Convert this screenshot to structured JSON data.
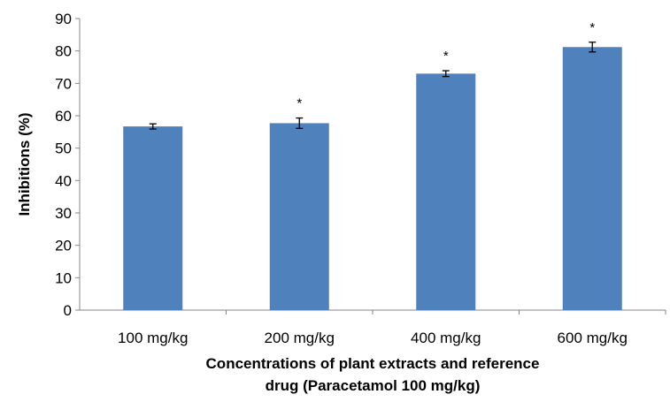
{
  "chart_data": {
    "type": "bar",
    "categories": [
      "100 mg/kg",
      "200 mg/kg",
      "400 mg/kg",
      "600 mg/kg"
    ],
    "values": [
      56.7,
      57.7,
      73.0,
      81.2
    ],
    "errors": [
      0.8,
      1.6,
      0.9,
      1.5
    ],
    "annotations": [
      "",
      "*",
      "*",
      "*"
    ],
    "ylabel": "Inhibitions (%)",
    "xlabel": "Concentrations of plant extracts and reference drug (Paracetamol 100 mg/kg)",
    "xlabel_lines": [
      "Concentrations of plant extracts and reference",
      "drug (Paracetamol 100 mg/kg)"
    ],
    "ylim": [
      0,
      90
    ],
    "yticks": [
      0,
      10,
      20,
      30,
      40,
      50,
      60,
      70,
      80,
      90
    ],
    "bar_color": "#4f81bd",
    "grid": false,
    "legend": "none"
  }
}
